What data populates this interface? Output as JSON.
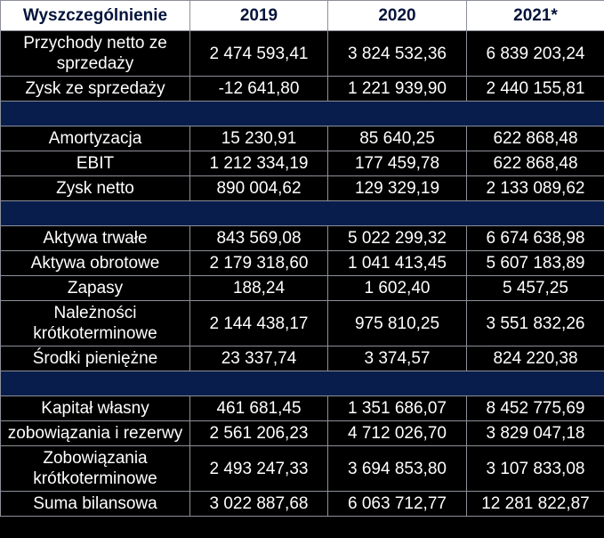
{
  "header": {
    "col0": "Wyszczególnienie",
    "col1": "2019",
    "col2": "2020",
    "col3": "2021*"
  },
  "rows": [
    {
      "label": "Przychody netto ze sprzedaży",
      "v2019": "2 474 593,41",
      "v2020": "3 824 532,36",
      "v2021": "6 839 203,24"
    },
    {
      "label": "Zysk ze sprzedaży",
      "v2019": "-12 641,80",
      "v2020": "1 221 939,90",
      "v2021": "2 440 155,81"
    },
    {
      "label": "Amortyzacja",
      "v2019": "15 230,91",
      "v2020": "85 640,25",
      "v2021": "622 868,48"
    },
    {
      "label": "EBIT",
      "v2019": "1 212 334,19",
      "v2020": "177 459,78",
      "v2021": "622 868,48"
    },
    {
      "label": "Zysk netto",
      "v2019": "890 004,62",
      "v2020": "129 329,19",
      "v2021": "2 133 089,62"
    },
    {
      "label": "Aktywa trwałe",
      "v2019": "843 569,08",
      "v2020": "5 022 299,32",
      "v2021": "6 674 638,98"
    },
    {
      "label": "Aktywa obrotowe",
      "v2019": "2 179 318,60",
      "v2020": "1 041 413,45",
      "v2021": "5 607 183,89"
    },
    {
      "label": "Zapasy",
      "v2019": "188,24",
      "v2020": "1 602,40",
      "v2021": "5 457,25"
    },
    {
      "label": "Należności krótkoterminowe",
      "v2019": "2 144 438,17",
      "v2020": "975 810,25",
      "v2021": "3 551 832,26"
    },
    {
      "label": "Środki pieniężne",
      "v2019": "23 337,74",
      "v2020": "3 374,57",
      "v2021": "824 220,38"
    },
    {
      "label": "Kapitał własny",
      "v2019": "461 681,45",
      "v2020": "1 351 686,07",
      "v2021": "8 452 775,69"
    },
    {
      "label": "zobowiązania i rezerwy",
      "v2019": "2 561 206,23",
      "v2020": "4 712 026,70",
      "v2021": "3 829 047,18"
    },
    {
      "label": "Zobowiązania krótkoterminowe",
      "v2019": "2 493 247,33",
      "v2020": "3 694 853,80",
      "v2021": "3 107 833,08"
    },
    {
      "label": "Suma bilansowa",
      "v2019": "3 022 887,68",
      "v2020": "6 063 712,77",
      "v2021": "12 281 822,87"
    }
  ],
  "colors": {
    "header_bg": "#ffffff",
    "header_text": "#05143b",
    "body_bg": "#000000",
    "separator_bg": "#081d4c",
    "grid": "#8d9099"
  }
}
